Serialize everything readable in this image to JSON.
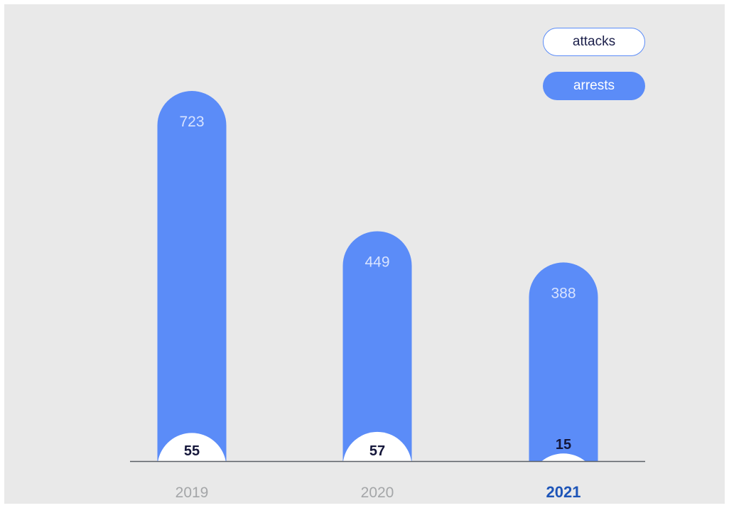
{
  "chart_data": {
    "type": "bar",
    "categories": [
      "2019",
      "2020",
      "2021"
    ],
    "highlight_category": "2021",
    "series": [
      {
        "name": "arrests",
        "values": [
          723,
          449,
          388
        ]
      },
      {
        "name": "attacks",
        "values": [
          55,
          57,
          15
        ]
      }
    ],
    "title": "",
    "xlabel": "",
    "ylabel": "",
    "ylim": [
      0,
      723
    ],
    "grid": false,
    "legend": "top-right",
    "stacking": "overlay"
  },
  "legend": {
    "attacks_label": "attacks",
    "arrests_label": "arrests"
  },
  "colors": {
    "background": "#e9e9e9",
    "arrests": "#5b8cf8",
    "attacks": "#ffffff",
    "axis": "#5a5f66",
    "category_label": "#a4a6a8",
    "highlight_label": "#1e55b8",
    "arrests_value_text": "#d8e3ff",
    "attacks_value_text": "#14163a"
  }
}
